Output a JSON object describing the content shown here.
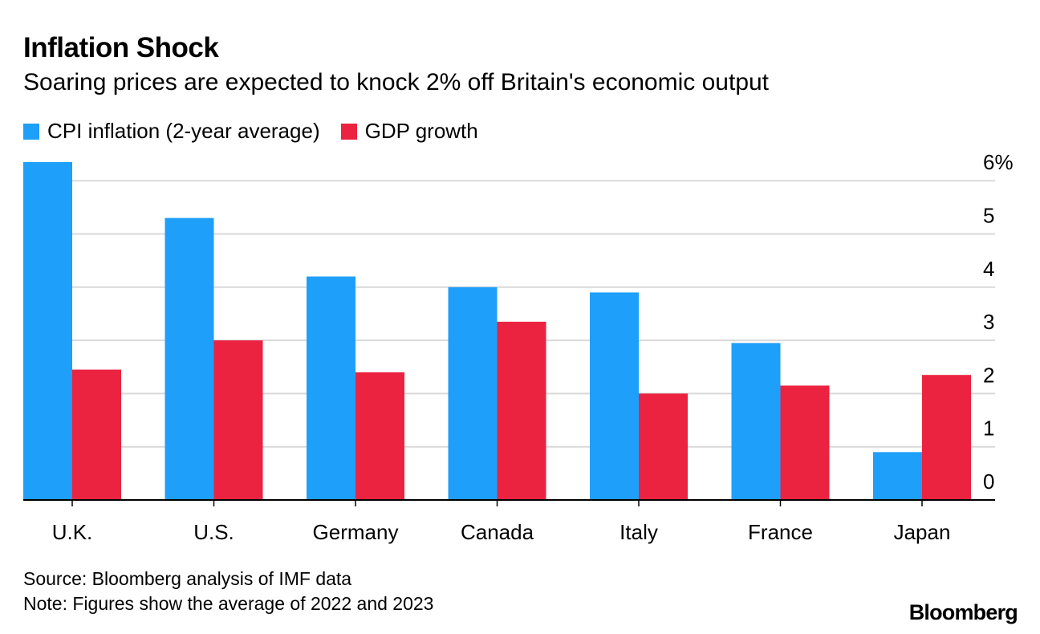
{
  "header": {
    "title": "Inflation Shock",
    "subtitle": "Soaring prices are expected to knock 2% off Britain's economic output"
  },
  "legend": {
    "items": [
      {
        "label": "CPI inflation (2-year average)",
        "color": "#1e9ffa"
      },
      {
        "label": "GDP growth",
        "color": "#eb2340"
      }
    ]
  },
  "footer": {
    "source": "Source: Bloomberg analysis of IMF data",
    "note": "Note: Figures show the average of 2022 and 2023",
    "brand": "Bloomberg"
  },
  "chart_data": {
    "type": "bar",
    "title": "Inflation Shock",
    "subtitle": "Soaring prices are expected to knock 2% off Britain's economic output",
    "categories": [
      "U.K.",
      "U.S.",
      "Germany",
      "Canada",
      "Italy",
      "France",
      "Japan"
    ],
    "series": [
      {
        "name": "CPI inflation (2-year average)",
        "color": "#1e9ffa",
        "values": [
          6.35,
          5.3,
          4.2,
          4.0,
          3.9,
          2.95,
          0.9
        ]
      },
      {
        "name": "GDP growth",
        "color": "#eb2340",
        "values": [
          2.45,
          3.0,
          2.4,
          3.35,
          2.0,
          2.15,
          2.35
        ]
      }
    ],
    "ylim": [
      0,
      6
    ],
    "yticks": [
      0,
      1,
      2,
      3,
      4,
      5,
      6
    ],
    "ytick_labels": [
      "0",
      "1",
      "2",
      "3",
      "4",
      "5",
      "6%"
    ],
    "ylabel": "",
    "xlabel": "",
    "grid": true,
    "y_axis_side": "right"
  }
}
